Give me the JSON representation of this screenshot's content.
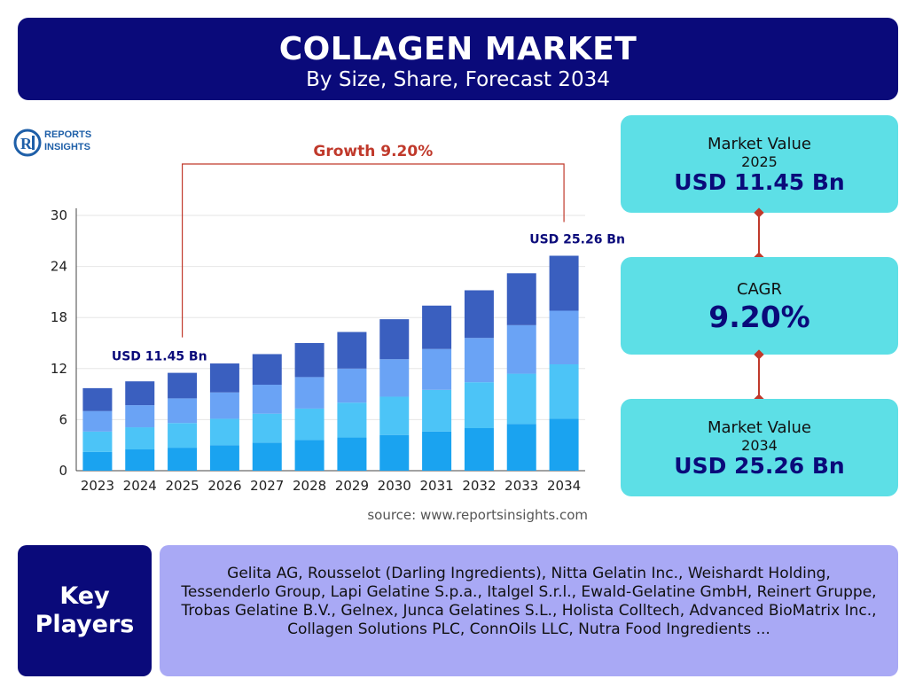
{
  "header": {
    "title": "COLLAGEN MARKET",
    "subtitle": "By Size, Share, Forecast 2034"
  },
  "logo": {
    "line1": "REPORTS",
    "line2": "INSIGHTS"
  },
  "chart_data": {
    "type": "bar",
    "stacked": true,
    "categories": [
      "2023",
      "2024",
      "2025",
      "2026",
      "2027",
      "2028",
      "2029",
      "2030",
      "2031",
      "2032",
      "2033",
      "2034"
    ],
    "series": [
      {
        "values": [
          2.2,
          2.5,
          2.7,
          3.0,
          3.3,
          3.6,
          3.9,
          4.2,
          4.6,
          5.0,
          5.5,
          6.1
        ]
      },
      {
        "values": [
          2.4,
          2.6,
          2.9,
          3.1,
          3.4,
          3.7,
          4.1,
          4.5,
          4.9,
          5.4,
          5.9,
          6.4
        ]
      },
      {
        "values": [
          2.4,
          2.6,
          2.9,
          3.1,
          3.4,
          3.7,
          4.0,
          4.4,
          4.8,
          5.2,
          5.7,
          6.3
        ]
      },
      {
        "values": [
          2.7,
          2.8,
          3.0,
          3.4,
          3.6,
          4.0,
          4.3,
          4.7,
          5.1,
          5.6,
          6.1,
          6.46
        ]
      }
    ],
    "series_colors": [
      "#1aa3f0",
      "#4cc4f7",
      "#6aa3f5",
      "#3a5fbf"
    ],
    "ylim": [
      0,
      30
    ],
    "yticks": [
      0,
      6,
      12,
      18,
      24,
      30
    ],
    "grid": true,
    "annotations": {
      "growth_label": "Growth 9.20%",
      "start_label": "USD 11.45 Bn",
      "end_label": "USD 25.26 Bn"
    },
    "source": "source: www.reportsinsights.com"
  },
  "cards": {
    "market_2025": {
      "label": "Market Value",
      "year": "2025",
      "value": "USD 11.45 Bn"
    },
    "cagr": {
      "label": "CAGR",
      "value": "9.20%"
    },
    "market_2034": {
      "label": "Market Value",
      "year": "2034",
      "value": "USD 25.26 Bn"
    }
  },
  "key_players": {
    "heading_line1": "Key",
    "heading_line2": "Players",
    "text": "Gelita AG, Rousselot (Darling Ingredients), Nitta Gelatin Inc., Weishardt Holding, Tessenderlo Group, Lapi Gelatine S.p.a., Italgel S.r.l., Ewald-Gelatine GmbH, Reinert Gruppe, Trobas Gelatine B.V., Gelnex, Junca Gelatines S.L., Holista Colltech, Advanced BioMatrix Inc., Collagen Solutions PLC, ConnOils LLC, Nutra Food Ingredients ..."
  },
  "colors": {
    "navy": "#0a0a7a",
    "cyan_card": "#5ddfe6",
    "players_bg": "#a9a9f5",
    "accent_red": "#c0392b"
  }
}
